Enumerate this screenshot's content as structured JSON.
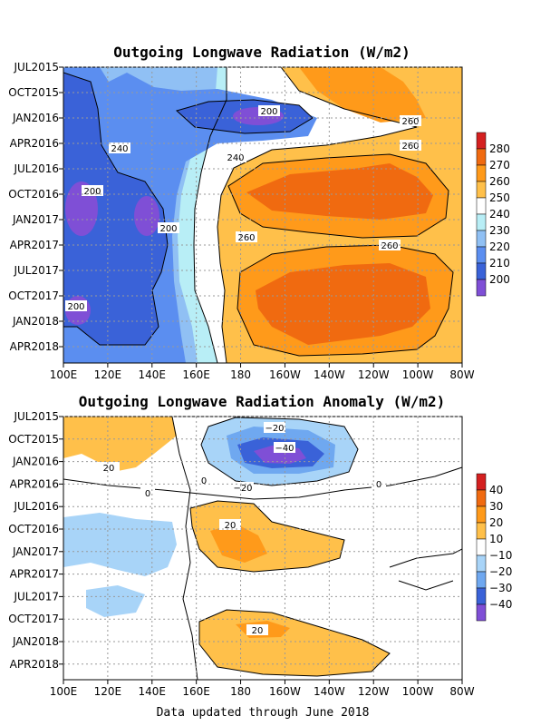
{
  "chart_data": [
    {
      "type": "heatmap",
      "title": "Outgoing Longwave Radiation (W/m2)",
      "xlabel": "",
      "ylabel": "",
      "x_ticks": [
        "100E",
        "120E",
        "140E",
        "160E",
        "180",
        "160W",
        "140W",
        "120W",
        "100W",
        "80W"
      ],
      "y_ticks": [
        "JUL2015",
        "OCT2015",
        "JAN2016",
        "APR2016",
        "JUL2016",
        "OCT2016",
        "JAN2017",
        "APR2017",
        "JUL2017",
        "OCT2017",
        "JAN2018",
        "APR2018"
      ],
      "colorbar": {
        "labels": [
          "200",
          "210",
          "220",
          "230",
          "240",
          "250",
          "260",
          "270",
          "280"
        ],
        "colors": [
          "#7f4fd6",
          "#3a62d8",
          "#5b8ef0",
          "#90c0f4",
          "#b8eef6",
          "#ffffff",
          "#ffc04a",
          "#ff9a1a",
          "#f06a10",
          "#d42020"
        ]
      },
      "contour_labels": [
        "200",
        "240",
        "260",
        "260",
        "240",
        "200",
        "200",
        "260",
        "260",
        "200"
      ]
    },
    {
      "type": "heatmap",
      "title": "Outgoing Longwave Radiation Anomaly (W/m2)",
      "xlabel": "",
      "ylabel": "",
      "x_ticks": [
        "100E",
        "120E",
        "140E",
        "160E",
        "180",
        "160W",
        "140W",
        "120W",
        "100W",
        "80W"
      ],
      "y_ticks": [
        "JUL2015",
        "OCT2015",
        "JAN2016",
        "APR2016",
        "JUL2016",
        "OCT2016",
        "JAN2017",
        "APR2017",
        "JUL2017",
        "OCT2017",
        "JAN2018",
        "APR2018"
      ],
      "colorbar": {
        "labels": [
          "40",
          "30",
          "20",
          "10",
          "−10",
          "−20",
          "−30",
          "−40"
        ],
        "colors": [
          "#d42020",
          "#f06a10",
          "#ff9a1a",
          "#ffc04a",
          "#ffffff",
          "#a8d4f8",
          "#6fa8f0",
          "#3a62d8",
          "#7f4fd6"
        ]
      },
      "contour_labels": [
        "−20",
        "−40",
        "−20",
        "20",
        "20",
        "20",
        "0",
        "0",
        "0"
      ]
    }
  ],
  "footer": "Data updated through June 2018"
}
